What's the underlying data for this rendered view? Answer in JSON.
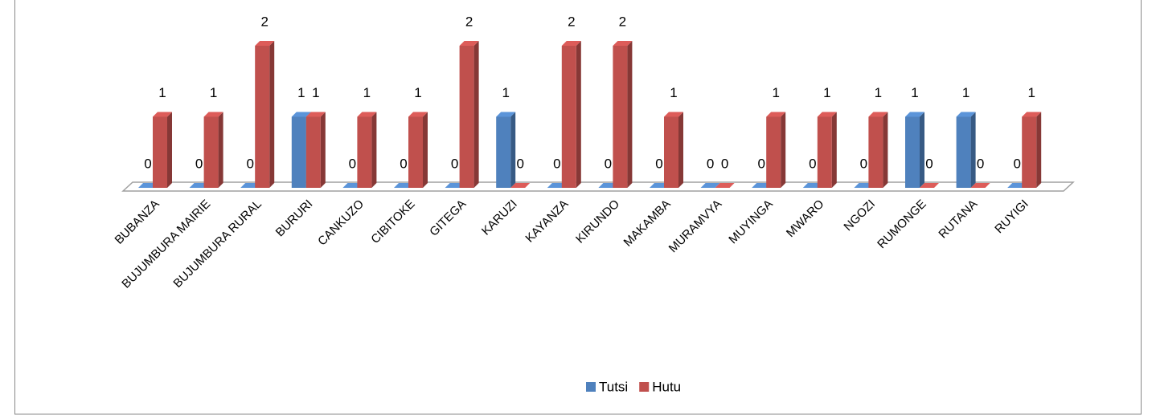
{
  "chart_data": {
    "type": "bar3d",
    "categories": [
      "BUBANZA",
      "BUJUMBURA MAIRIE",
      "BUJUMBURA RURAL",
      "BURURI",
      "CANKUZO",
      "CIBITOKE",
      "GITEGA",
      "KARUZI",
      "KAYANZA",
      "KIRUNDO",
      "MAKAMBA",
      "MURAMVYA",
      "MUYINGA",
      "MWARO",
      "NGOZI",
      "RUMONGE",
      "RUTANA",
      "RUYIGI"
    ],
    "series": [
      {
        "name": "Tutsi",
        "color": "#4f81bd",
        "values": [
          0,
          0,
          0,
          1,
          0,
          0,
          0,
          1,
          0,
          0,
          0,
          0,
          0,
          0,
          0,
          1,
          1,
          0
        ]
      },
      {
        "name": "Hutu",
        "color": "#c0504d",
        "values": [
          1,
          1,
          2,
          1,
          1,
          1,
          2,
          0,
          2,
          2,
          1,
          0,
          1,
          1,
          1,
          0,
          0,
          1
        ]
      }
    ],
    "legend": "bottom"
  }
}
